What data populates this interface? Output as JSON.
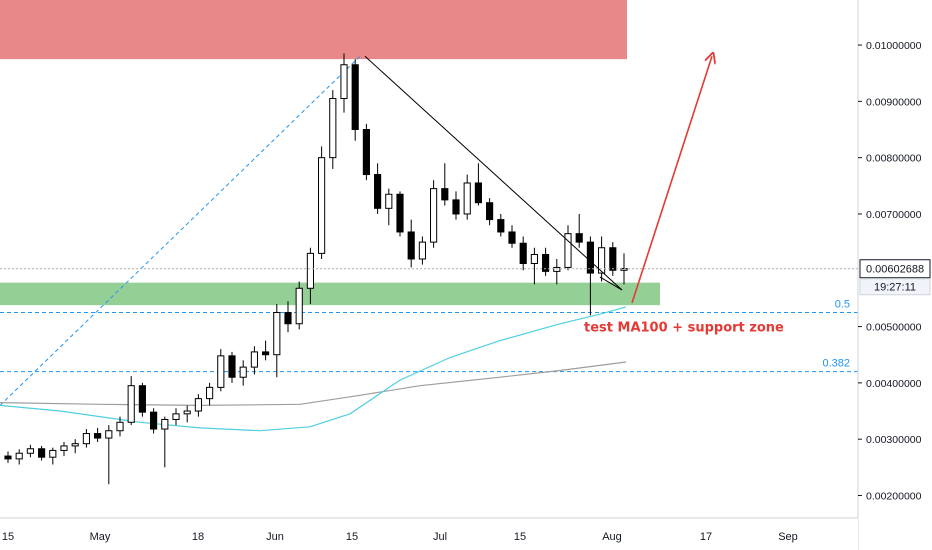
{
  "chart_data": {
    "type": "candlestick",
    "x_labels": [
      "15",
      "May",
      "18",
      "Jun",
      "15",
      "Jul",
      "15",
      "Aug",
      "17",
      "Sep"
    ],
    "y_tick_labels": [
      "0.01000000",
      "0.00900000",
      "0.00800000",
      "0.00700000",
      "0.00500000",
      "0.00400000",
      "0.00300000",
      "0.00200000"
    ],
    "y_ticks": [
      0.01,
      0.009,
      0.008,
      0.007,
      0.005,
      0.004,
      0.003,
      0.002
    ],
    "ylim": [
      0.0016,
      0.0108
    ],
    "last_price": {
      "value": 0.00602688,
      "label": "0.00602688",
      "countdown": "19:27:11"
    },
    "fib_levels": [
      {
        "label": "0.5",
        "value": 0.00525
      },
      {
        "label": "0.382",
        "value": 0.0042
      }
    ],
    "annotation": "test MA100 + support zone",
    "colors": {
      "resistance_zone": "#e57373",
      "support_zone": "#81c784",
      "ma100": "#4dd0e1",
      "ma200": "#9e9e9e",
      "fib_line": "#2196f3",
      "arrow": "#e53935",
      "up_candle": "#ffffff",
      "down_candle": "#000000"
    },
    "resistance_zone": {
      "low": 0.00975,
      "high": 0.0108
    },
    "support_zone": {
      "low": 0.00538,
      "high": 0.00578
    },
    "candles_ohlc_approx": [
      [
        0.0027,
        0.00278,
        0.00258,
        0.00265
      ],
      [
        0.00265,
        0.00282,
        0.00255,
        0.00275
      ],
      [
        0.00275,
        0.0029,
        0.00268,
        0.00283
      ],
      [
        0.00283,
        0.00288,
        0.00262,
        0.00268
      ],
      [
        0.00268,
        0.00285,
        0.00255,
        0.0028
      ],
      [
        0.0028,
        0.00295,
        0.0027,
        0.00288
      ],
      [
        0.00288,
        0.003,
        0.00275,
        0.00292
      ],
      [
        0.00292,
        0.00318,
        0.00285,
        0.0031
      ],
      [
        0.0031,
        0.0032,
        0.00295,
        0.00302
      ],
      [
        0.00302,
        0.00325,
        0.0022,
        0.00315
      ],
      [
        0.00315,
        0.0034,
        0.00305,
        0.0033
      ],
      [
        0.0033,
        0.00412,
        0.00325,
        0.00395
      ],
      [
        0.00395,
        0.004,
        0.0034,
        0.00348
      ],
      [
        0.00348,
        0.00355,
        0.0031,
        0.00318
      ],
      [
        0.00318,
        0.0034,
        0.0025,
        0.00335
      ],
      [
        0.00335,
        0.00355,
        0.00325,
        0.00345
      ],
      [
        0.00345,
        0.0036,
        0.0033,
        0.0035
      ],
      [
        0.0035,
        0.0038,
        0.0034,
        0.00372
      ],
      [
        0.00372,
        0.004,
        0.0036,
        0.00392
      ],
      [
        0.00392,
        0.0046,
        0.00385,
        0.00448
      ],
      [
        0.00448,
        0.00455,
        0.004,
        0.0041
      ],
      [
        0.0041,
        0.0044,
        0.00395,
        0.00428
      ],
      [
        0.00428,
        0.00465,
        0.00415,
        0.00455
      ],
      [
        0.00455,
        0.00475,
        0.0044,
        0.0045
      ],
      [
        0.0045,
        0.0054,
        0.0041,
        0.00525
      ],
      [
        0.00525,
        0.00545,
        0.0049,
        0.00505
      ],
      [
        0.00505,
        0.0058,
        0.00495,
        0.00568
      ],
      [
        0.00568,
        0.0064,
        0.0054,
        0.0063
      ],
      [
        0.0063,
        0.0082,
        0.0062,
        0.008
      ],
      [
        0.008,
        0.0092,
        0.0078,
        0.00905
      ],
      [
        0.00905,
        0.00985,
        0.0088,
        0.00965
      ],
      [
        0.00965,
        0.00975,
        0.0083,
        0.0085
      ],
      [
        0.0085,
        0.0086,
        0.0076,
        0.0077
      ],
      [
        0.0077,
        0.0079,
        0.007,
        0.0071
      ],
      [
        0.0071,
        0.00745,
        0.0068,
        0.00735
      ],
      [
        0.00735,
        0.0074,
        0.0066,
        0.00668
      ],
      [
        0.00668,
        0.0069,
        0.00605,
        0.0062
      ],
      [
        0.0062,
        0.0066,
        0.0061,
        0.0065
      ],
      [
        0.0065,
        0.0076,
        0.0064,
        0.00745
      ],
      [
        0.00745,
        0.0079,
        0.00715,
        0.00725
      ],
      [
        0.00725,
        0.0074,
        0.0069,
        0.007
      ],
      [
        0.007,
        0.0077,
        0.0069,
        0.00755
      ],
      [
        0.00755,
        0.0079,
        0.00715,
        0.0072
      ],
      [
        0.0072,
        0.00728,
        0.0068,
        0.0069
      ],
      [
        0.0069,
        0.007,
        0.0066,
        0.00668
      ],
      [
        0.00668,
        0.0068,
        0.0064,
        0.00648
      ],
      [
        0.00648,
        0.0066,
        0.006,
        0.00612
      ],
      [
        0.00612,
        0.0064,
        0.00575,
        0.00628
      ],
      [
        0.00628,
        0.0064,
        0.0059,
        0.00598
      ],
      [
        0.00598,
        0.0062,
        0.00575,
        0.00605
      ],
      [
        0.00605,
        0.0068,
        0.006,
        0.00665
      ],
      [
        0.00665,
        0.007,
        0.0064,
        0.0065
      ],
      [
        0.0065,
        0.0066,
        0.0052,
        0.00595
      ],
      [
        0.00595,
        0.0066,
        0.0058,
        0.0064
      ],
      [
        0.0064,
        0.0065,
        0.0059,
        0.006
      ],
      [
        0.006,
        0.0063,
        0.00575,
        0.00603
      ]
    ]
  }
}
